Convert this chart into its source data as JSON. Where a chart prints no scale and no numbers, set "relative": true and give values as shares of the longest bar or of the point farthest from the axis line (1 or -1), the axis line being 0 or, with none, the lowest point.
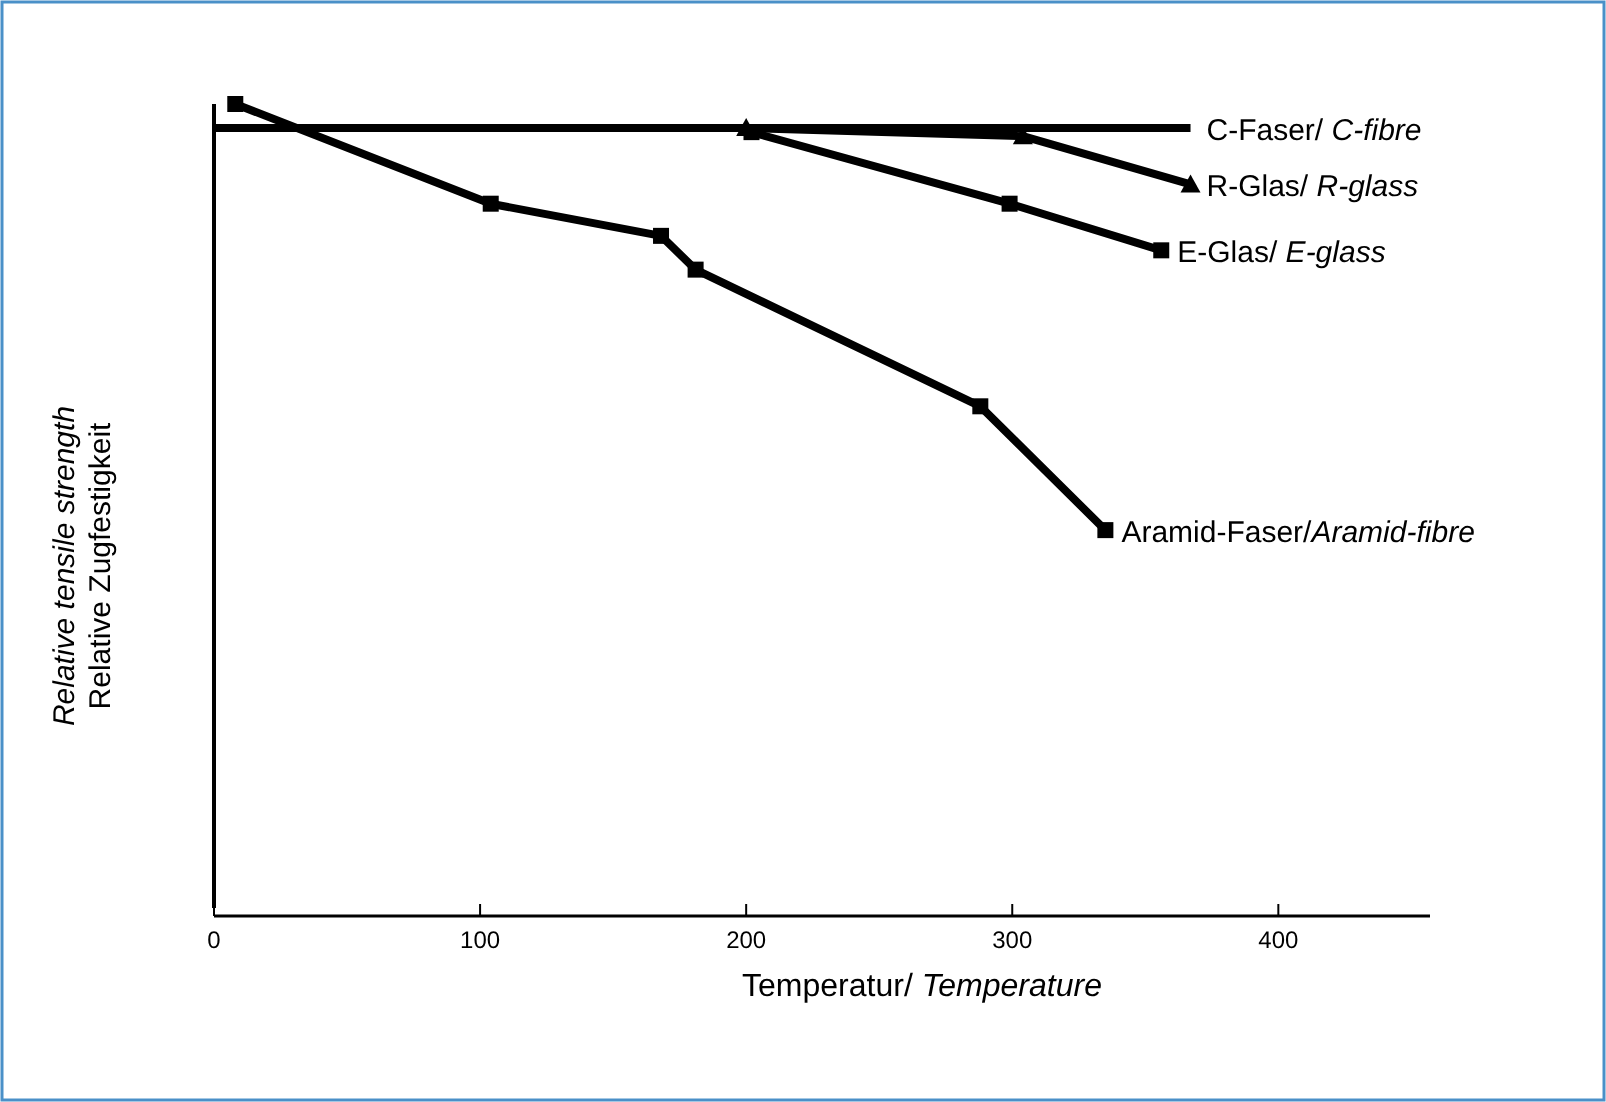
{
  "chart_data": {
    "type": "line",
    "relative": true,
    "xlabel": "Temperatur/ Temperature",
    "ylabel": "Relative tensile strength\nRelative Zugfestigkeit",
    "xlim": [
      0,
      457
    ],
    "xticks": [
      0,
      100,
      200,
      300,
      400
    ],
    "line_style": "solid",
    "series": [
      {
        "name": "C-Faser/ C-fibre",
        "color": "#000000",
        "marker": "none",
        "x": [
          0,
          367
        ],
        "values": [
          0.97,
          0.97
        ]
      },
      {
        "name": "R-Glas/ R-glass",
        "color": "#000000",
        "marker": "triangle",
        "x": [
          200,
          304,
          367
        ],
        "values": [
          0.97,
          0.96,
          0.9
        ]
      },
      {
        "name": "E-Glas/ E-glass",
        "color": "#000000",
        "marker": "square",
        "x": [
          202,
          299,
          356
        ],
        "values": [
          0.965,
          0.876,
          0.818
        ]
      },
      {
        "name": "Aramid-Faser/Aramid-fibre",
        "color": "#000000",
        "marker": "square",
        "x": [
          8,
          104,
          168,
          181,
          288,
          335
        ],
        "values": [
          1,
          0.876,
          0.836,
          0.794,
          0.624,
          0.47
        ]
      }
    ]
  }
}
